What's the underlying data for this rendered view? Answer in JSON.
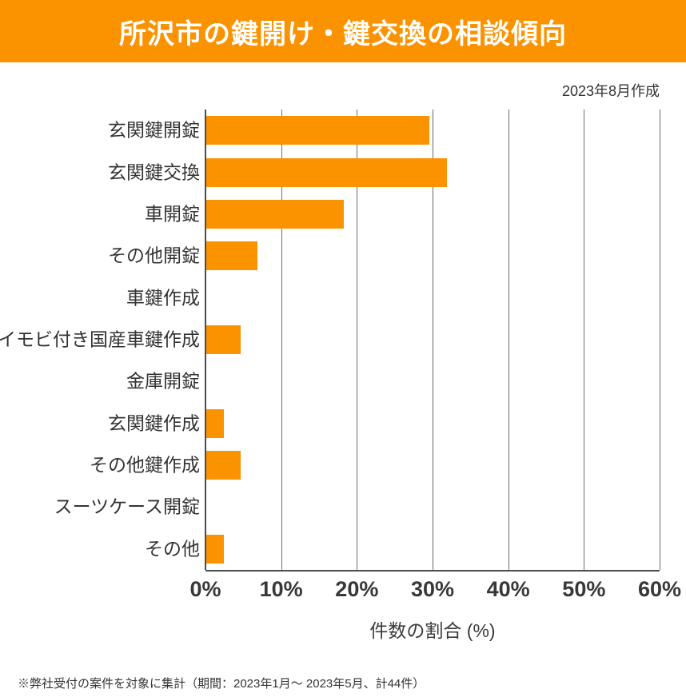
{
  "header": {
    "title": "所沢市の鍵開け・鍵交換の相談傾向",
    "created_label": "2023年8月作成"
  },
  "chart_data": {
    "type": "bar",
    "orientation": "horizontal",
    "title": "所沢市の鍵開け・鍵交換の相談傾向",
    "categories": [
      "玄関鍵開錠",
      "玄関鍵交換",
      "車開錠",
      "その他開錠",
      "車鍵作成",
      "イモビ付き国産車鍵作成",
      "金庫開錠",
      "玄関鍵作成",
      "その他鍵作成",
      "スーツケース開錠",
      "その他"
    ],
    "values": [
      29.5,
      31.8,
      18.2,
      6.8,
      0,
      4.5,
      0,
      2.3,
      4.5,
      0,
      2.3
    ],
    "unit": "%",
    "xlabel": "件数の割合 (%)",
    "x_ticks": [
      "0%",
      "10%",
      "20%",
      "30%",
      "40%",
      "50%",
      "60%"
    ],
    "xlim": [
      0,
      60
    ],
    "grid": "vertical",
    "legend": "none"
  },
  "footer": {
    "note": "※弊社受付の案件を対象に集計（期間：2023年1月～ 2023年5月、計44件）"
  },
  "colors": {
    "accent_orange": "#FB9300",
    "bar": "#FB9300",
    "title_text": "#FFFFFF",
    "body_text": "#333333",
    "gridline": "#6E6E6E",
    "axis_line": "#4C4C4C"
  }
}
